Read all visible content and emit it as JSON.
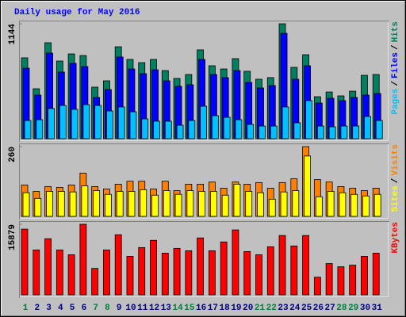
{
  "chart_data": [
    {
      "type": "bar",
      "title": "Daily usage for May 2016",
      "ylim": [
        0,
        1144
      ],
      "yticks": [
        1144
      ],
      "legend_separator": "/",
      "series": [
        {
          "name": "Hits",
          "color": "#008060",
          "values": [
            805,
            497,
            955,
            773,
            844,
            828,
            513,
            576,
            915,
            789,
            757,
            789,
            678,
            600,
            639,
            884,
            726,
            694,
            797,
            671,
            592,
            608,
            1144,
            710,
            836,
            418,
            465,
            426,
            473,
            631,
            639
          ]
        },
        {
          "name": "Files",
          "color": "#0000ff",
          "values": [
            702,
            434,
            852,
            663,
            750,
            718,
            410,
            489,
            813,
            694,
            647,
            686,
            576,
            521,
            537,
            789,
            639,
            608,
            678,
            560,
            505,
            529,
            1049,
            592,
            726,
            355,
            402,
            379,
            410,
            434,
            450
          ]
        },
        {
          "name": "Pages",
          "color": "#00c0ff",
          "values": [
            181,
            189,
            300,
            331,
            292,
            339,
            331,
            276,
            316,
            268,
            197,
            174,
            174,
            134,
            181,
            323,
            229,
            213,
            189,
            142,
            126,
            126,
            316,
            158,
            379,
            126,
            118,
            126,
            126,
            221,
            181
          ]
        }
      ]
    },
    {
      "type": "bar",
      "ylim": [
        0,
        260
      ],
      "yticks": [
        260
      ],
      "legend_separator": "/",
      "series": [
        {
          "name": "Visits",
          "color": "#ff8000",
          "values": [
            117,
            93,
            111,
            108,
            117,
            161,
            111,
            102,
            120,
            131,
            131,
            102,
            131,
            96,
            120,
            120,
            128,
            105,
            128,
            120,
            126,
            105,
            126,
            140,
            260,
            137,
            128,
            111,
            105,
            96,
            105
          ]
        },
        {
          "name": "Sites",
          "color": "#ffff00",
          "values": [
            88,
            67,
            93,
            93,
            91,
            114,
            96,
            82,
            93,
            93,
            99,
            79,
            96,
            82,
            96,
            93,
            93,
            79,
            120,
            93,
            88,
            64,
            91,
            96,
            225,
            73,
            93,
            88,
            82,
            76,
            82
          ]
        }
      ]
    },
    {
      "type": "bar",
      "ylim": [
        0,
        15879
      ],
      "yticks": [
        15879
      ],
      "categories": [
        "1",
        "2",
        "3",
        "4",
        "5",
        "6",
        "7",
        "8",
        "9",
        "10",
        "11",
        "12",
        "13",
        "14",
        "15",
        "16",
        "17",
        "18",
        "19",
        "20",
        "21",
        "22",
        "23",
        "24",
        "25",
        "26",
        "27",
        "28",
        "29",
        "30",
        "31"
      ],
      "category_colors": [
        "#008040",
        "#000080",
        "#000080",
        "#000080",
        "#000080",
        "#000080",
        "#008040",
        "#008040",
        "#000080",
        "#000080",
        "#000080",
        "#000080",
        "#000080",
        "#008040",
        "#008040",
        "#000080",
        "#000080",
        "#000080",
        "#000080",
        "#000080",
        "#008040",
        "#008040",
        "#000080",
        "#000080",
        "#000080",
        "#000080",
        "#000080",
        "#008040",
        "#008040",
        "#000080",
        "#000080"
      ],
      "series": [
        {
          "name": "KBytes",
          "color": "#ff0000",
          "values": [
            14793,
            10102,
            12628,
            10102,
            9020,
            15879,
            5953,
            10102,
            13530,
            8659,
            10644,
            12267,
            9381,
            10463,
            9922,
            12808,
            9922,
            11906,
            14612,
            9742,
            9020,
            10824,
            13350,
            11004,
            13350,
            3969,
            7036,
            6314,
            6675,
            8659,
            9381
          ]
        }
      ]
    }
  ]
}
